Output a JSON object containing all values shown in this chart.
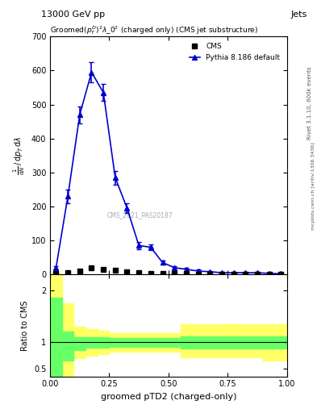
{
  "title_top": "13000 GeV pp",
  "title_right": "Jets",
  "plot_title": "Groomed$(p_T^D)^2\\lambda\\_0^2$ (charged only) (CMS jet substructure)",
  "xlabel": "groomed pTD2 (charged-only)",
  "ylabel_main": "$\\frac{1}{\\mathrm{d}N}\\,/\\,\\mathrm{d}p_T\\,\\mathrm{d}\\lambda$",
  "ylabel_ratio": "Ratio to CMS",
  "rivet_label": "Rivet 3.1.10, 600k events",
  "arxiv_label": "mcplots.cern.ch [arXiv:1306.3436]",
  "cms_label": "CMS_2021_PAS20187",
  "cms_x": [
    0.0,
    0.05,
    0.1,
    0.15,
    0.2,
    0.25,
    0.3,
    0.35,
    0.4,
    0.45,
    0.5,
    0.55,
    0.6,
    0.65,
    0.7,
    0.75,
    0.8,
    0.85,
    0.9,
    0.95,
    1.0
  ],
  "cms_y": [
    2,
    5,
    10,
    20,
    15,
    12,
    8,
    5,
    3,
    2,
    2,
    2,
    1,
    1,
    1,
    1,
    1,
    1,
    1,
    1,
    0
  ],
  "cms_yerr": [
    1,
    2,
    3,
    4,
    3,
    2,
    2,
    1,
    1,
    1,
    1,
    1,
    0.5,
    0.5,
    0.5,
    0.5,
    0.5,
    0.5,
    0.5,
    0.5,
    0
  ],
  "pythia_x": [
    0.025,
    0.075,
    0.125,
    0.175,
    0.225,
    0.275,
    0.325,
    0.375,
    0.425,
    0.475,
    0.525,
    0.575,
    0.625,
    0.675,
    0.725,
    0.775,
    0.825,
    0.875,
    0.925,
    0.975
  ],
  "pythia_y": [
    20,
    230,
    470,
    595,
    535,
    285,
    195,
    85,
    80,
    35,
    20,
    15,
    10,
    8,
    5,
    5,
    5,
    5,
    3,
    2
  ],
  "pythia_yerr": [
    5,
    20,
    25,
    30,
    25,
    20,
    15,
    10,
    8,
    5,
    5,
    4,
    4,
    3,
    3,
    2,
    2,
    2,
    2,
    1
  ],
  "ratio_bins": [
    0.0,
    0.05,
    0.1,
    0.15,
    0.2,
    0.25,
    0.3,
    0.35,
    0.4,
    0.45,
    0.5,
    0.55,
    0.6,
    0.65,
    0.7,
    0.75,
    0.8,
    0.85,
    0.9,
    0.95,
    1.0
  ],
  "ratio_centers": [
    0.025,
    0.075,
    0.125,
    0.175,
    0.225,
    0.275,
    0.325,
    0.375,
    0.425,
    0.475,
    0.525,
    0.575,
    0.625,
    0.675,
    0.725,
    0.775,
    0.825,
    0.875,
    0.925,
    0.975
  ],
  "ratio_green_lo": [
    0.35,
    0.65,
    0.85,
    0.9,
    0.9,
    0.92,
    0.92,
    0.92,
    0.92,
    0.92,
    0.92,
    0.88,
    0.88,
    0.88,
    0.88,
    0.88,
    0.88,
    0.88,
    0.88,
    0.88
  ],
  "ratio_green_hi": [
    1.85,
    1.2,
    1.1,
    1.1,
    1.1,
    1.08,
    1.08,
    1.08,
    1.08,
    1.08,
    1.08,
    1.12,
    1.12,
    1.12,
    1.12,
    1.12,
    1.12,
    1.12,
    1.12,
    1.12
  ],
  "ratio_yellow_lo": [
    0.15,
    0.35,
    0.7,
    0.75,
    0.78,
    0.82,
    0.82,
    0.82,
    0.82,
    0.82,
    0.82,
    0.72,
    0.72,
    0.72,
    0.72,
    0.72,
    0.72,
    0.72,
    0.65,
    0.65
  ],
  "ratio_yellow_hi": [
    2.3,
    1.75,
    1.3,
    1.25,
    1.22,
    1.18,
    1.18,
    1.18,
    1.18,
    1.18,
    1.18,
    1.35,
    1.35,
    1.35,
    1.35,
    1.35,
    1.35,
    1.35,
    1.35,
    1.35
  ],
  "main_ylim": [
    0,
    700
  ],
  "ratio_ylim": [
    0.35,
    2.3
  ],
  "xlim": [
    0.0,
    1.0
  ],
  "color_cms": "black",
  "color_pythia": "#0000cc",
  "color_green": "#66ff66",
  "color_yellow": "#ffff66",
  "background_color": "#ffffff"
}
